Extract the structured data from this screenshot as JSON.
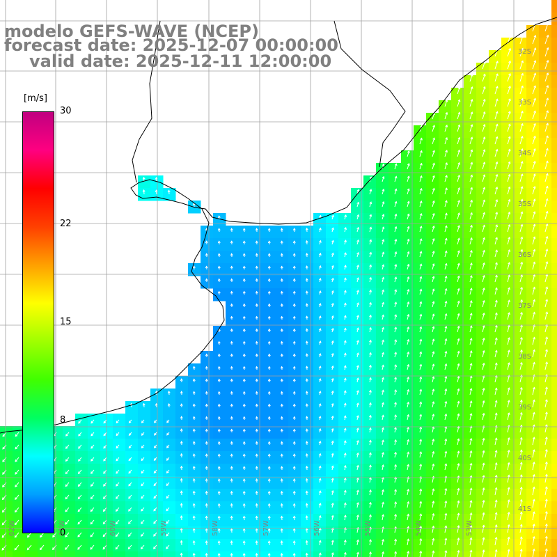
{
  "header": {
    "title": "modelo GEFS-WAVE (NCEP)",
    "forecast": "forecast date: 2025-12-07 00:00:00",
    "valid": "valid date: 2025-12-11 12:00:00"
  },
  "colorbar": {
    "unit": "[m/s]",
    "min": 0,
    "max": 30,
    "ticks": [
      "30",
      "22",
      "15",
      "8",
      "0"
    ],
    "tick_values": [
      30,
      22,
      15,
      8,
      0
    ],
    "colors": [
      "#0000ff",
      "#00a0ff",
      "#00ffff",
      "#00ff60",
      "#40ff00",
      "#a0ff00",
      "#ffff00",
      "#ffa000",
      "#ff4000",
      "#ff0000",
      "#ff0080",
      "#c00080"
    ]
  },
  "map": {
    "lat_labels": [
      "32S",
      "33S",
      "34S",
      "35S",
      "36S",
      "37S",
      "38S",
      "39S",
      "40S",
      "41S"
    ],
    "lon_labels": [
      "62W",
      "61W",
      "60W",
      "59W",
      "58W",
      "57W",
      "56W",
      "55W",
      "54W",
      "53W"
    ],
    "land_color": "#ffffff",
    "grid_color": "#a0a0a0",
    "arrow_color": "#ffffff"
  }
}
